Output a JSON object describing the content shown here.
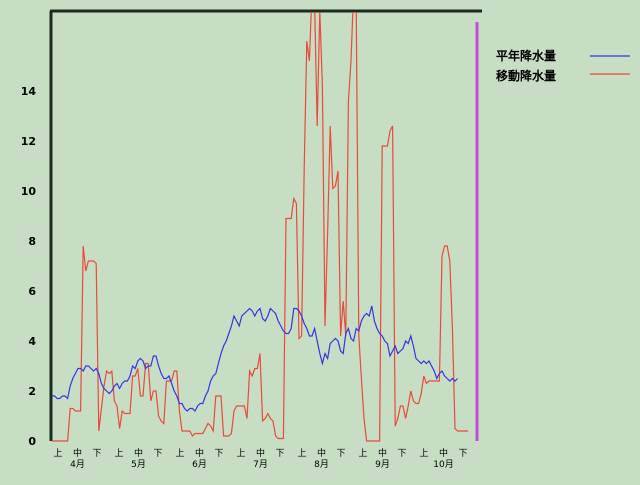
{
  "chart_data": {
    "type": "line",
    "ylim": [
      0,
      16
    ],
    "yticks": [
      0,
      2,
      4,
      6,
      8,
      10,
      12,
      14
    ],
    "grid": false,
    "legend_position": "top-right",
    "x_sub_ticks": [
      "上",
      "中",
      "下"
    ],
    "months": [
      "4月",
      "5月",
      "6月",
      "7月",
      "8月",
      "9月",
      "10月"
    ],
    "series": [
      {
        "name": "平年降水量",
        "color": "#3535e0",
        "values": [
          1.8,
          1.8,
          1.7,
          1.7,
          1.8,
          1.8,
          1.7,
          2.2,
          2.5,
          2.7,
          2.9,
          2.9,
          2.8,
          3.0,
          3.0,
          2.9,
          2.8,
          2.9,
          2.7,
          2.3,
          2.1,
          2.0,
          1.9,
          2.0,
          2.2,
          2.3,
          2.1,
          2.3,
          2.4,
          2.4,
          2.6,
          3.0,
          2.9,
          3.2,
          3.3,
          3.2,
          2.9,
          3.0,
          3.0,
          3.4,
          3.4,
          3.0,
          2.7,
          2.5,
          2.5,
          2.6,
          2.3,
          2.0,
          1.8,
          1.5,
          1.5,
          1.3,
          1.2,
          1.3,
          1.3,
          1.2,
          1.4,
          1.5,
          1.5,
          1.8,
          2.0,
          2.4,
          2.6,
          2.7,
          3.1,
          3.5,
          3.8,
          4.0,
          4.3,
          4.6,
          5.0,
          4.8,
          4.6,
          5.0,
          5.1,
          5.2,
          5.3,
          5.2,
          5.0,
          5.2,
          5.3,
          4.9,
          4.8,
          5.0,
          5.3,
          5.2,
          5.1,
          4.8,
          4.6,
          4.4,
          4.3,
          4.3,
          4.5,
          5.3,
          5.3,
          5.2,
          5.0,
          4.7,
          4.5,
          4.2,
          4.2,
          4.5,
          4.0,
          3.5,
          3.1,
          3.5,
          3.3,
          3.9,
          4.0,
          4.1,
          4.0,
          3.6,
          3.5,
          4.3,
          4.5,
          4.1,
          4.0,
          4.5,
          4.4,
          4.8,
          5.0,
          5.1,
          5.0,
          5.4,
          4.8,
          4.5,
          4.3,
          4.2,
          4.0,
          3.9,
          3.4,
          3.6,
          3.8,
          3.5,
          3.6,
          3.7,
          4.0,
          3.9,
          4.2,
          3.8,
          3.3,
          3.2,
          3.1,
          3.2,
          3.1,
          3.2,
          3.0,
          2.8,
          2.5,
          2.7,
          2.8,
          2.6,
          2.5,
          2.4,
          2.5,
          2.4,
          2.5
        ]
      },
      {
        "name": "移動降水量",
        "color": "#e84a3c",
        "values": [
          0.0,
          0.0,
          0.0,
          0.0,
          0.0,
          0.0,
          0.0,
          1.3,
          1.3,
          1.2,
          1.2,
          1.2,
          7.8,
          6.8,
          7.2,
          7.2,
          7.2,
          7.1,
          0.4,
          1.3,
          2.2,
          2.8,
          2.7,
          2.8,
          1.6,
          1.4,
          0.5,
          1.2,
          1.1,
          1.1,
          1.1,
          2.6,
          2.6,
          2.9,
          1.8,
          1.8,
          3.1,
          3.1,
          1.6,
          2.0,
          2.0,
          1.0,
          0.8,
          0.7,
          2.4,
          2.4,
          2.4,
          2.8,
          2.8,
          1.2,
          0.4,
          0.4,
          0.4,
          0.4,
          0.2,
          0.3,
          0.3,
          0.3,
          0.3,
          0.5,
          0.7,
          0.6,
          0.4,
          1.8,
          1.8,
          1.8,
          0.2,
          0.2,
          0.2,
          0.3,
          1.2,
          1.4,
          1.4,
          1.4,
          1.4,
          0.9,
          2.8,
          2.6,
          2.9,
          2.9,
          3.5,
          0.8,
          0.9,
          1.1,
          0.9,
          0.8,
          0.2,
          0.1,
          0.1,
          0.1,
          8.9,
          8.9,
          8.9,
          9.7,
          9.5,
          4.1,
          4.2,
          10.9,
          16.0,
          15.2,
          18.0,
          17.5,
          12.6,
          17.2,
          14.2,
          4.6,
          8.3,
          12.6,
          10.1,
          10.2,
          10.8,
          4.2,
          5.6,
          4.2,
          13.6,
          15.2,
          18.0,
          17.5,
          4.2,
          2.5,
          0.9,
          0.0,
          0.0,
          0.0,
          0.0,
          0.0,
          0.0,
          11.8,
          11.8,
          11.8,
          12.4,
          12.6,
          0.6,
          0.9,
          1.4,
          1.4,
          0.9,
          1.4,
          2.0,
          1.6,
          1.5,
          1.5,
          1.9,
          2.6,
          2.3,
          2.4,
          2.4,
          2.4,
          2.4,
          2.4,
          7.4,
          7.8,
          7.8,
          7.2,
          4.5,
          0.5,
          0.4,
          0.4,
          0.4,
          0.4,
          0.4
        ]
      }
    ]
  }
}
